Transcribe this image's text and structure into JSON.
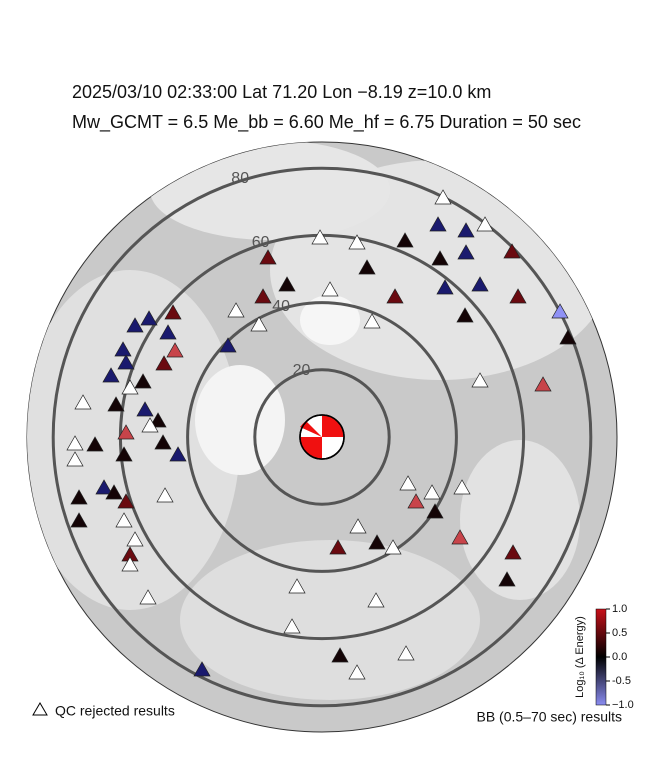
{
  "header": {
    "line1": "2025/03/10  02:33:00   Lat 71.20    Lon −8.19   z=10.0 km",
    "line2": "Mw_GCMT = 6.5   Me_bb = 6.60   Me_hf = 6.75   Duration = 50 sec"
  },
  "distance_rings": [
    20,
    40,
    60,
    80
  ],
  "colorbar": {
    "label": "Log₁₀ (Δ Energy)",
    "lim": [
      -1,
      1
    ],
    "ticks": [
      {
        "value": 1,
        "label": "1.0"
      },
      0.5,
      {
        "value": 0,
        "label": "0.0"
      },
      -0.5,
      {
        "value": -1,
        "label": "−1.0"
      }
    ]
  },
  "legend": {
    "rejected": "QC rejected results",
    "band": "BB (0.5–70 sec) results"
  }
}
